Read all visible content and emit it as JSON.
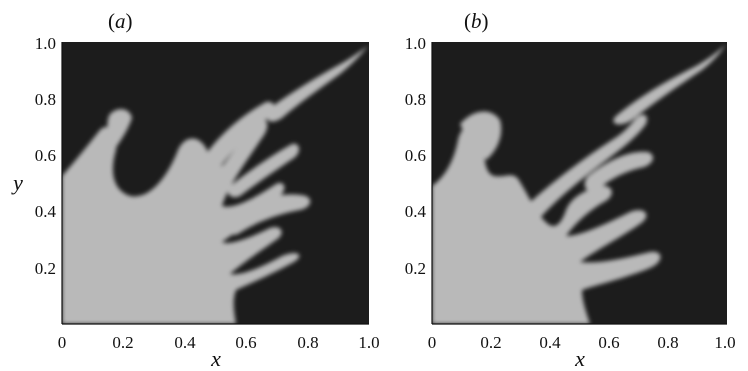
{
  "chart_data": [
    {
      "type": "heatmap",
      "panel_label": "a",
      "xlabel": "x",
      "ylabel": "y",
      "xlim": [
        0,
        1
      ],
      "ylim": [
        0,
        1
      ],
      "xticks": [
        "0",
        "0.2",
        "0.4",
        "0.6",
        "0.8",
        "1.0"
      ],
      "yticks": [
        "0.2",
        "0.4",
        "0.6",
        "0.8",
        "1.0"
      ],
      "grid": false,
      "colors": {
        "background": "#1c1c1c",
        "fluid": "#b9b9b9"
      }
    },
    {
      "type": "heatmap",
      "panel_label": "b",
      "xlabel": "x",
      "ylabel": "",
      "xlim": [
        0,
        1
      ],
      "ylim": [
        0,
        1
      ],
      "xticks": [
        "0",
        "0.2",
        "0.4",
        "0.6",
        "0.8",
        "1.0"
      ],
      "yticks": [
        "0.2",
        "0.4",
        "0.6",
        "0.8",
        "1.0"
      ],
      "grid": false,
      "colors": {
        "background": "#1c1c1c",
        "fluid": "#b9b9b9"
      }
    }
  ]
}
